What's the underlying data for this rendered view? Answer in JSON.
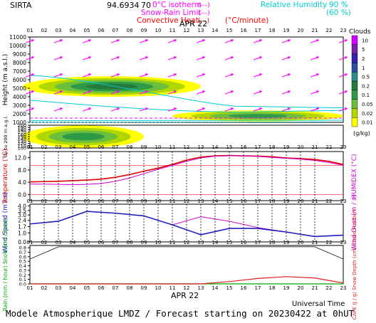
{
  "header": {
    "site": "SIRTA",
    "coord_prefix": "94.6934",
    "coord_suffix": "70",
    "legend": [
      {
        "label": "0°C isotherm",
        "color": "#ff00ff",
        "sample": "(---)"
      },
      {
        "label": "Snow-Rain Limit",
        "color": "#ff00ff",
        "sample": "(---)"
      },
      {
        "label": "Convective Heat.",
        "color": "#ff0000",
        "sample": "(—)"
      }
    ],
    "heat_unit": "(°C/minute)",
    "rh": [
      {
        "label": "Relative Humidity",
        "value": "90 %"
      },
      {
        "label": "",
        "value": "(60 %)"
      }
    ]
  },
  "date_label": "APR 22",
  "hours": [
    "01",
    "02",
    "03",
    "04",
    "05",
    "06",
    "07",
    "08",
    "09",
    "10",
    "11",
    "12",
    "13",
    "14",
    "15",
    "16",
    "17",
    "18",
    "19",
    "20",
    "21",
    "22",
    "23"
  ],
  "footer": {
    "universal_time": "Universal Time",
    "caption": "Modele Atmospherique LMDZ / Forecast starting on 20230422 at 0hUT"
  },
  "colors": {
    "cloud_scale": [
      "#ffff00",
      "#b0d800",
      "#6cbf3c",
      "#2e9a48",
      "#237a3a",
      "#2e8b8b",
      "#2a4fa0",
      "#3322aa",
      "#7a22aa",
      "#d000ff"
    ],
    "temperature": "#e00000",
    "humidex": "#d000d0",
    "wind_speed": "#2020c0",
    "wind_gust": "#d000d0",
    "rain": "#00aa00",
    "cape": "#e02020",
    "cloud_contour": "#00c8d8"
  },
  "chart_data": [
    {
      "type": "heatmap",
      "title": "",
      "ylabel": "Height (m a.s.l.)",
      "ylabel_low": "Up to 200 m a.g.l.",
      "upper_y_ticks": [
        "1000",
        "2000",
        "3000",
        "4000",
        "5000",
        "6000",
        "7000",
        "8000",
        "9000",
        "10000",
        "11000"
      ],
      "lower_y_ticks": [
        "100",
        "110",
        "120",
        "130",
        "140",
        "150",
        "160",
        "170",
        "180",
        "190",
        "200"
      ],
      "colorbar": {
        "title": "Clouds",
        "unit": "(g/kg)",
        "ticks": [
          "0.01",
          "0.02",
          "0.05",
          "0.1",
          "0.2",
          "0.5",
          "1",
          "2",
          "5",
          "10"
        ]
      },
      "cloud_layers": [
        {
          "name": "mid-level cloud",
          "x_start": 0.5,
          "x_end": 13,
          "base_m": 4000,
          "top_m": 6400,
          "peak_hour": 5,
          "peak_class": "1"
        },
        {
          "name": "low cloud",
          "x_start": 11,
          "x_end": 23,
          "base_m": 1100,
          "top_m": 2400,
          "peak_hour": 16,
          "peak_class": "0.5"
        },
        {
          "name": "near-surface",
          "x_start": 0.5,
          "x_end": 9,
          "base_m": 100,
          "top_m": 160,
          "peak_hour": 5,
          "peak_class": "0.5"
        }
      ],
      "wind_arrows": "upper-air wind vectors, mostly from south-west",
      "isotherm_0c": {
        "hour_start": 1,
        "hour_end": 23,
        "height_m": 1500
      }
    },
    {
      "type": "line",
      "ylabel": "Temperature (°C)",
      "ylabel_right": "HUMIDEX (°C)",
      "y_ticks": [
        0,
        4,
        8,
        12
      ],
      "ylim": [
        -2,
        14
      ],
      "x": [
        1,
        2,
        3,
        4,
        5,
        6,
        7,
        8,
        9,
        10,
        11,
        12,
        13,
        14,
        15,
        16,
        17,
        18,
        19,
        20,
        21,
        22,
        23
      ],
      "series": [
        {
          "values": [
            4.1,
            4.2,
            4.3,
            4.5,
            4.7,
            5.0,
            5.6,
            6.5,
            7.6,
            8.6,
            9.8,
            11.2,
            12.2,
            12.6,
            12.7,
            12.6,
            12.5,
            12.3,
            11.9,
            11.7,
            11.4,
            10.8,
            9.8
          ]
        },
        {
          "values": [
            3.4,
            3.4,
            3.3,
            3.2,
            3.3,
            3.6,
            4.3,
            5.4,
            6.8,
            8.2,
            9.5,
            10.8,
            11.9,
            12.5,
            12.6,
            12.6,
            12.4,
            12.1,
            11.8,
            11.5,
            11.1,
            10.4,
            9.5
          ]
        }
      ],
      "reference_lines": [
        0,
        9.5
      ]
    },
    {
      "type": "line",
      "ylabel": "Wind Speed (m / s)",
      "ylabel_right": "Wind Gust (m / s)",
      "y_ticks": [
        0.0,
        1.0,
        1.7,
        2.4,
        3.0,
        3.5,
        4.0
      ],
      "ylim": [
        0,
        4.2
      ],
      "x": [
        1,
        3,
        5,
        7,
        9,
        11,
        13,
        15,
        17,
        19,
        21,
        23
      ],
      "series": [
        {
          "values": [
            2.0,
            2.3,
            3.4,
            3.2,
            2.9,
            1.9,
            0.8,
            1.5,
            1.5,
            1.1,
            0.6,
            0.75
          ]
        },
        {
          "values": [
            2.0,
            2.3,
            3.4,
            3.2,
            2.9,
            1.9,
            2.8,
            2.3,
            1.6,
            1.1,
            0.6,
            0.75
          ]
        }
      ]
    },
    {
      "type": "line",
      "ylabel": "Rain (mm / hour) Snow (cm / hour)",
      "ylabel_right": "CAPE (J / g) Snow Depth (cm) Cloud Fraction",
      "y_ticks": [
        0.0,
        0.1,
        0.2,
        0.3,
        0.4,
        0.5,
        0.6,
        0.7,
        0.8
      ],
      "ylim": [
        0,
        0.85
      ],
      "x": [
        1,
        3,
        5,
        7,
        9,
        11,
        13,
        15,
        17,
        19,
        21,
        23
      ],
      "series": [
        {
          "values": [
            0.0,
            0.0,
            0.0,
            0.0,
            0.0,
            0.0,
            0.0,
            0.0,
            0.0,
            0.0,
            0.0,
            0.0
          ]
        },
        {
          "values": [
            0.0,
            0.0,
            0.0,
            0.0,
            0.0,
            0.0,
            0.0,
            0.05,
            0.12,
            0.16,
            0.13,
            0.02
          ]
        }
      ]
    }
  ]
}
